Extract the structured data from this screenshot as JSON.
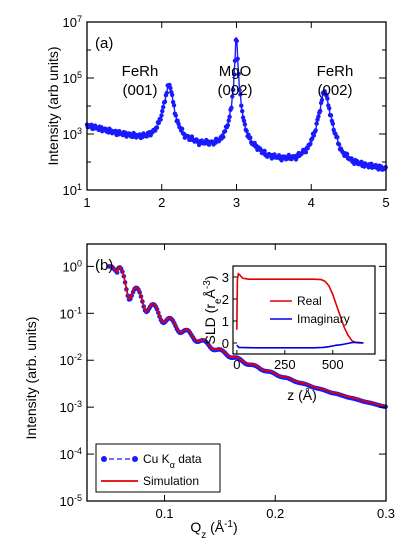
{
  "chart_data": [
    {
      "panel": "(a)",
      "type": "scatter",
      "ylabel": "Intensity (arb units)",
      "yscale": "log",
      "xlim": [
        1,
        5
      ],
      "ylim": [
        10,
        10000000
      ],
      "xticks": [
        "1",
        "2",
        "3",
        "4",
        "5"
      ],
      "yticks": [
        "10",
        "10",
        "10",
        "10"
      ],
      "ytick_exps": [
        "1",
        "3",
        "5",
        "7"
      ],
      "series": [
        {
          "color": "#1a1aff",
          "x": [
            1.0,
            1.2,
            1.4,
            1.6,
            1.7,
            1.8,
            1.9,
            1.95,
            2.0,
            2.05,
            2.08,
            2.1,
            2.12,
            2.15,
            2.2,
            2.3,
            2.5,
            2.7,
            2.8,
            2.88,
            2.93,
            2.96,
            2.98,
            2.99,
            3.0,
            3.01,
            3.02,
            3.04,
            3.07,
            3.12,
            3.2,
            3.4,
            3.6,
            3.8,
            3.95,
            4.05,
            4.12,
            4.16,
            4.18,
            4.2,
            4.24,
            4.3,
            4.4,
            4.55,
            4.7,
            4.85,
            5.0
          ],
          "y": [
            2000,
            1500,
            1100,
            900,
            850,
            900,
            1300,
            2200,
            5000,
            20000,
            45000,
            60000,
            45000,
            15000,
            3000,
            900,
            500,
            500,
            700,
            2000,
            8000,
            60000,
            400000,
            2000000,
            2500000,
            1500000,
            300000,
            40000,
            8000,
            1500,
            500,
            180,
            140,
            150,
            300,
            1200,
            8000,
            28000,
            35000,
            25000,
            8000,
            1500,
            250,
            110,
            80,
            70,
            55
          ]
        }
      ],
      "annotations": [
        {
          "lines": [
            "FeRh",
            "(001)"
          ]
        },
        {
          "lines": [
            "MgO",
            "(002)"
          ]
        },
        {
          "lines": [
            "FeRh",
            "(002)"
          ]
        }
      ]
    },
    {
      "panel": "(b)",
      "type": "line",
      "xlabel": "Q",
      "xlabel_sub": "z",
      "xlabel_unit": " (Å",
      "xlabel_unit_exp": "-1",
      "ylabel": "Intensity (arb. units)",
      "yscale": "log",
      "xlim": [
        0.03,
        0.3
      ],
      "ylim": [
        1e-05,
        3
      ],
      "xticks": [
        "0.1",
        "0.2",
        "0.3"
      ],
      "yticks": [
        "10",
        "10",
        "10",
        "10",
        "10",
        "10"
      ],
      "ytick_exps": [
        "0",
        "-1",
        "-2",
        "-3",
        "-4",
        "-5"
      ],
      "series": [
        {
          "name": "Cu K",
          "name_sub": "α",
          "name_suffix": " data",
          "color": "#1a1aff",
          "style": "line+markers"
        },
        {
          "name": "Simulation",
          "color": "#e00000",
          "style": "line"
        }
      ],
      "inset": {
        "type": "line",
        "xlabel": "z (Å)",
        "ylabel": "SLD (r",
        "ylabel_sub": "e",
        "ylabel_unit": "Å",
        "ylabel_unit_exp": "-3",
        "ylabel_close": ")",
        "xlim": [
          -20,
          720
        ],
        "ylim": [
          -0.5,
          3.5
        ],
        "xticks": [
          "0",
          "250",
          "500"
        ],
        "yticks": [
          "0",
          "1",
          "2",
          "3"
        ],
        "series": [
          {
            "name": "Real",
            "color": "#e00000",
            "x": [
              0,
              3,
              8,
              15,
              30,
              60,
              100,
              200,
              300,
              400,
              440,
              460,
              480,
              500,
              520,
              540,
              560,
              580,
              600,
              620,
              640,
              660
            ],
            "y": [
              0.6,
              2.9,
              3.15,
              3.1,
              2.95,
              2.9,
              2.9,
              2.9,
              2.9,
              2.9,
              2.88,
              2.8,
              2.6,
              2.2,
              1.7,
              1.2,
              0.7,
              0.35,
              0.1,
              0.02,
              0.0,
              0.0
            ]
          },
          {
            "name": "Imaginary",
            "color": "#0000e0",
            "x": [
              0,
              10,
              100,
              200,
              300,
              400,
              450,
              480,
              500,
              520,
              540,
              560,
              580,
              600,
              620,
              640,
              660
            ],
            "y": [
              -0.1,
              -0.2,
              -0.22,
              -0.22,
              -0.22,
              -0.22,
              -0.2,
              -0.17,
              -0.13,
              -0.1,
              -0.08,
              -0.05,
              -0.02,
              0.02,
              0.03,
              0.02,
              0.0
            ]
          }
        ]
      }
    }
  ]
}
